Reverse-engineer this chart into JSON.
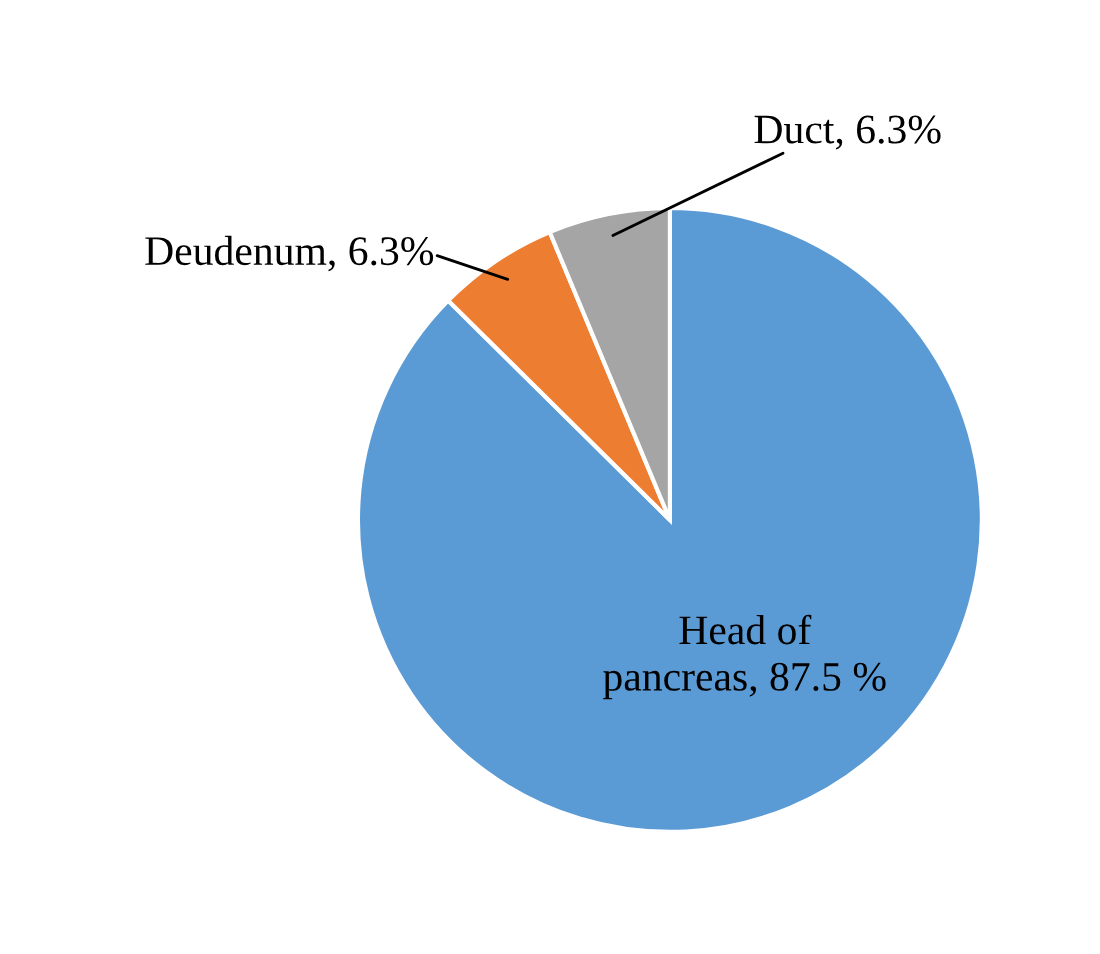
{
  "chart_data": {
    "type": "pie",
    "categories": [
      "Head of\npancreas",
      "Deudenum",
      "Duct"
    ],
    "values": [
      87.5,
      6.3,
      6.3
    ],
    "value_labels": [
      "87.5 %",
      "6.3%",
      "6.3%"
    ],
    "colors": [
      "#5b9bd5",
      "#ed7d31",
      "#a5a5a5"
    ],
    "legend": false
  }
}
